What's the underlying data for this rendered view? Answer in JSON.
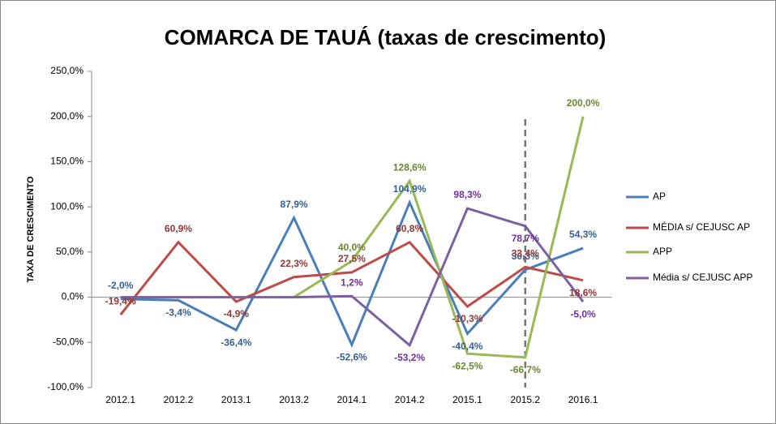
{
  "chart_data": {
    "type": "line",
    "title": "COMARCA DE TAUÁ (taxas de crescimento)",
    "y_label": "TAXA DE CRESCIMENTO",
    "categories": [
      "2012.1",
      "2012.2",
      "2013.1",
      "2013.2",
      "2014.1",
      "2014.2",
      "2015.1",
      "2015.2",
      "2016.1"
    ],
    "ylim": [
      -100,
      250
    ],
    "yticks": [
      {
        "value": -100,
        "label": "-100,0%"
      },
      {
        "value": -50,
        "label": "-50,0%"
      },
      {
        "value": 0,
        "label": "0,0%"
      },
      {
        "value": 50,
        "label": "50,0%"
      },
      {
        "value": 100,
        "label": "100,0%"
      },
      {
        "value": 150,
        "label": "150,0%"
      },
      {
        "value": 200,
        "label": "200,0%"
      },
      {
        "value": 250,
        "label": "250,0%"
      }
    ],
    "legend": "right",
    "series": [
      {
        "name": "AP",
        "color": "#4a7ebb",
        "label_color": "#376092",
        "values": [
          -2.0,
          -3.4,
          -36.4,
          87.9,
          -52.6,
          104.9,
          -40.4,
          30.3,
          54.3
        ],
        "value_labels": [
          "-2,0%",
          "-3,4%",
          "-36,4%",
          "87,9%",
          "-52,6%",
          "104,9%",
          "-40,4%",
          "30,3%",
          "54,3%"
        ]
      },
      {
        "name": "MÉDIA s/ CEJUSC AP",
        "color": "#be4b48",
        "label_color": "#953735",
        "values": [
          -19.4,
          60.9,
          -4.9,
          22.3,
          27.5,
          60.8,
          -10.3,
          33.4,
          18.6
        ],
        "value_labels": [
          "-19,4%",
          "60,9%",
          "-4,9%",
          "22,3%",
          "27,5%",
          "60,8%",
          "-10,3%",
          "33,4%",
          "18,6%"
        ]
      },
      {
        "name": "APP",
        "color": "#98b954",
        "label_color": "#6a8732",
        "values": [
          null,
          null,
          null,
          0,
          40.0,
          128.6,
          -62.5,
          -66.7,
          200.0
        ],
        "value_labels": [
          null,
          null,
          null,
          null,
          "40,0%",
          "128,6%",
          "-62,5%",
          "-66,7%",
          "200,0%"
        ]
      },
      {
        "name": "Média s/ CEJUSC APP",
        "color": "#7d60a0",
        "label_color": "#7030a0",
        "values": [
          0,
          0,
          0,
          0,
          1.2,
          -53.2,
          98.3,
          78.7,
          -5.0
        ],
        "value_labels": [
          null,
          null,
          null,
          null,
          "1,2%",
          "-53,2%",
          "98,3%",
          "78,7%",
          "-5,0%"
        ]
      }
    ]
  }
}
